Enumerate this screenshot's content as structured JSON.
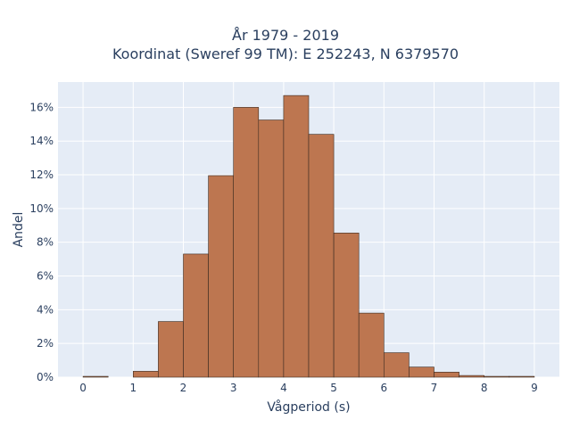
{
  "chart_data": {
    "type": "bar",
    "title_line1": "År 1979 - 2019",
    "title_line2": "Koordinat (Sweref 99 TM): E 252243, N 6379570",
    "xlabel": "Vågperiod (s)",
    "ylabel": "Andel",
    "bin_width": 0.5,
    "bins": [
      0,
      0.5,
      1,
      1.5,
      2,
      2.5,
      3,
      3.5,
      4,
      4.5,
      5,
      5.5,
      6,
      6.5,
      7,
      7.5,
      8,
      8.5
    ],
    "values": [
      0.05,
      0,
      0.35,
      3.3,
      7.3,
      11.95,
      16.0,
      15.25,
      16.7,
      14.4,
      8.55,
      3.8,
      1.45,
      0.6,
      0.3,
      0.1,
      0.05,
      0.05
    ],
    "x_range": [
      -0.5,
      9.5
    ],
    "y_range": [
      0,
      17.5
    ],
    "x_ticks": [
      "0",
      "1",
      "2",
      "3",
      "4",
      "5",
      "6",
      "7",
      "8",
      "9"
    ],
    "y_ticks": [
      "0%",
      "2%",
      "4%",
      "6%",
      "8%",
      "10%",
      "12%",
      "14%",
      "16%"
    ],
    "grid": true,
    "bar_color": "#bd7650",
    "bar_edge_color": "#3a2a20",
    "plot_background": "#e5ecf6"
  }
}
